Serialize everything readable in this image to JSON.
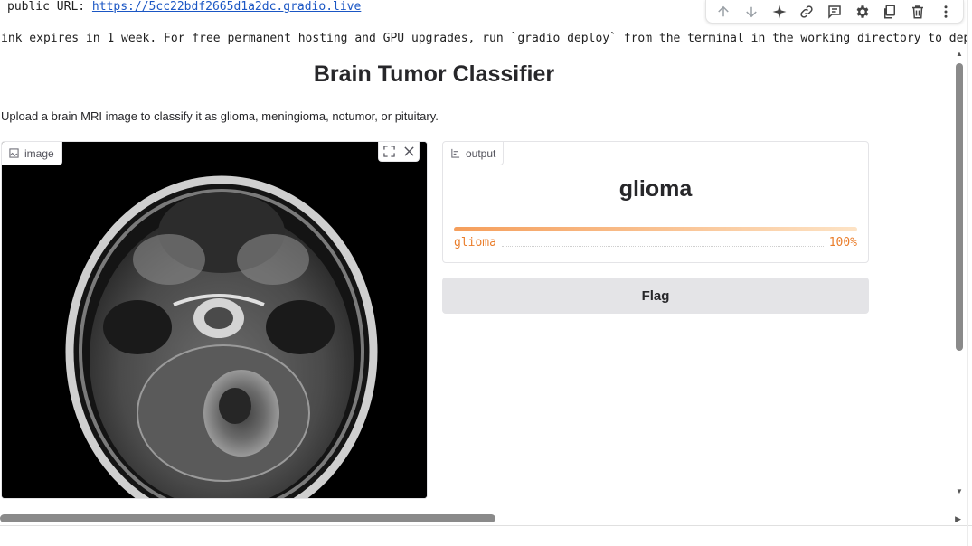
{
  "log": {
    "url_prefix": "public URL: ",
    "url": "https://5cc22bdf2665d1a2dc.gradio.live",
    "expiry": "ink expires in 1 week. For free permanent hosting and GPU upgrades, run `gradio deploy` from the terminal in the working directory to deplo"
  },
  "toolbar": {
    "icons": [
      "arrow-up-icon",
      "arrow-down-icon",
      "sparkle-icon",
      "link-icon",
      "comment-icon",
      "gear-icon",
      "mirror-cell-icon",
      "trash-icon",
      "more-vert-icon"
    ]
  },
  "app": {
    "title": "Brain Tumor Classifier",
    "description": "Upload a brain MRI image to classify it as glioma, meningioma, notumor, or pituitary."
  },
  "input": {
    "label": "image"
  },
  "output": {
    "label": "output",
    "predicted": "glioma",
    "confidences": [
      {
        "label": "glioma",
        "value_text": "100%",
        "value": 1.0
      }
    ]
  },
  "flag": {
    "label": "Flag"
  },
  "colors": {
    "accent": "#ea7e2c",
    "link": "#1a56c4",
    "button_bg": "#e4e4e7"
  }
}
